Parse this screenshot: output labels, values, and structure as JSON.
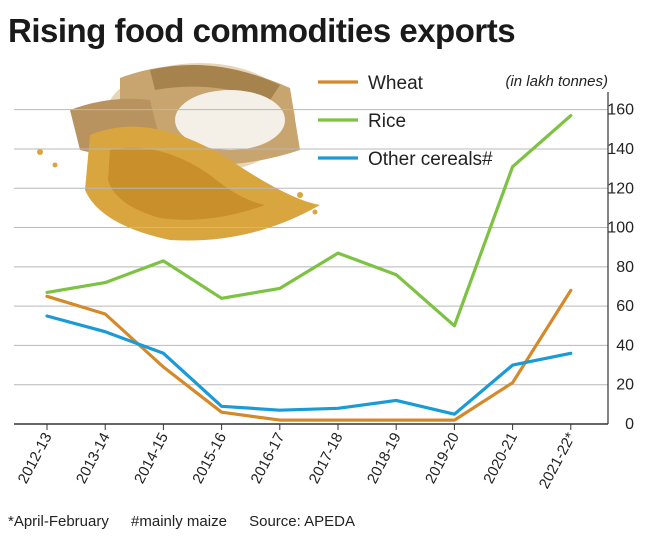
{
  "title": "Rising food commodities exports",
  "unit_note": "(in lakh tonnes)",
  "footnotes": {
    "april": "*April-February",
    "maize": "#mainly maize",
    "source": "Source: APEDA"
  },
  "chart_data": {
    "type": "line",
    "categories": [
      "2012-13",
      "2013-14",
      "2014-15",
      "2015-16",
      "2016-17",
      "2017-18",
      "2018-19",
      "2019-20",
      "2020-21",
      "2021-22*"
    ],
    "series": [
      {
        "name": "Wheat",
        "color": "#d4892a",
        "values": [
          65,
          56,
          29,
          6,
          2,
          2,
          2,
          2,
          21,
          68
        ]
      },
      {
        "name": "Rice",
        "color": "#7dc242",
        "values": [
          67,
          72,
          83,
          64,
          69,
          87,
          76,
          50,
          131,
          157
        ]
      },
      {
        "name": "Other cereals#",
        "color": "#1a9ad6",
        "values": [
          55,
          47,
          36,
          9,
          7,
          8,
          12,
          5,
          30,
          36
        ]
      }
    ],
    "yticks": [
      0,
      20,
      40,
      60,
      80,
      100,
      120,
      140,
      160
    ],
    "ylim": [
      0,
      170
    ],
    "grid": true,
    "legend": "top-center"
  }
}
